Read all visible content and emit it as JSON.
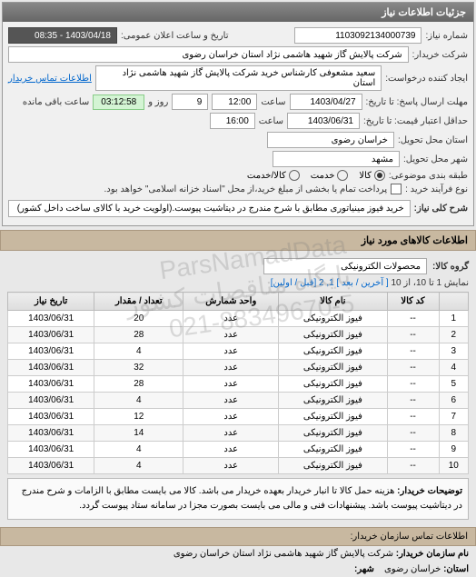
{
  "panel_title": "جزئیات اطلاعات نیاز",
  "header": {
    "need_number_label": "شماره نیاز:",
    "need_number": "1103092134000739",
    "announce_label": "تاریخ و ساعت اعلان عمومی:",
    "announce_value": "1403/04/18 - 08:35",
    "buyer_label": "شرکت خریدار:",
    "buyer_value": "شرکت پالایش گاز شهید هاشمی نژاد   استان خراسان رضوی",
    "requester_label": "ایجاد کننده درخواست:",
    "requester_value": "سعید مشعوفی کارشناس خرید شرکت پالایش گاز شهید هاشمی نژاد   استان",
    "contact_link": "اطلاعات تماس خریدار",
    "deadline_label": "مهلت ارسال پاسخ: تا تاریخ:",
    "deadline_date": "1403/04/27",
    "time_label": "ساعت",
    "deadline_time": "12:00",
    "days_remaining": "9",
    "days_label": "روز و",
    "countdown": "03:12:58",
    "remaining_label": "ساعت باقی مانده",
    "validity_label": "حداقل اعتبار قیمت: تا تاریخ:",
    "validity_date": "1403/06/31",
    "validity_time": "16:00",
    "delivery_state_label": "استان محل تحویل:",
    "delivery_state": "خراسان رضوی",
    "delivery_city_label": "شهر محل تحویل:",
    "delivery_city": "مشهد",
    "packing_label": "طبقه بندی موضوعی:",
    "radio_goods": "کالا",
    "radio_service": "خدمت",
    "radio_both": "کالا/خدمت",
    "process_label": "نوع فرآیند خرید :",
    "checkbox_label": "پرداخت تمام یا بخشی از مبلغ خرید،از محل \"اسناد خزانه اسلامی\" خواهد بود."
  },
  "need_title": {
    "label": "شرح کلی نیاز:",
    "value": "خرید فیوز مینیاتوری مطابق با شرح مندرج در دیتاشیت پیوست.(اولویت خرید با کالای ساخت داخل کشور)"
  },
  "goods_section": {
    "title": "اطلاعات کالاهای مورد نیاز",
    "group_label": "گروه کالا:",
    "group_value": "محصولات الکترونیکی",
    "pager_text": "نمایش 1 تا 10، از 10",
    "pager_prev": "[ آخرین / بعد ]",
    "pager_pages": "1, 2",
    "pager_next": "[قبل / اولین]"
  },
  "table": {
    "columns": [
      "",
      "کد کالا",
      "نام کالا",
      "واحد شمارش",
      "تعداد / مقدار",
      "تاریخ نیاز"
    ],
    "rows": [
      [
        "1",
        "--",
        "فیوز الکترونیکی",
        "عدد",
        "20",
        "1403/06/31"
      ],
      [
        "2",
        "--",
        "فیوز الکترونیکی",
        "عدد",
        "28",
        "1403/06/31"
      ],
      [
        "3",
        "--",
        "فیوز الکترونیکی",
        "عدد",
        "4",
        "1403/06/31"
      ],
      [
        "4",
        "--",
        "فیوز الکترونیکی",
        "عدد",
        "32",
        "1403/06/31"
      ],
      [
        "5",
        "--",
        "فیوز الکترونیکی",
        "عدد",
        "28",
        "1403/06/31"
      ],
      [
        "6",
        "--",
        "فیوز الکترونیکی",
        "عدد",
        "4",
        "1403/06/31"
      ],
      [
        "7",
        "--",
        "فیوز الکترونیکی",
        "عدد",
        "12",
        "1403/06/31"
      ],
      [
        "8",
        "--",
        "فیوز الکترونیکی",
        "عدد",
        "14",
        "1403/06/31"
      ],
      [
        "9",
        "--",
        "فیوز الکترونیکی",
        "عدد",
        "4",
        "1403/06/31"
      ],
      [
        "10",
        "--",
        "فیوز الکترونیکی",
        "عدد",
        "4",
        "1403/06/31"
      ]
    ]
  },
  "notes": {
    "label": "توضیحات خریدار:",
    "text": "هزینه حمل کالا تا انبار خریدار بعهده خریدار می باشد. کالا می بایست مطابق با الزامات و شرح مندرج در دیتاشیت پیوست باشد. پیشنهادات فنی و مالی می بایست بصورت مجزا در سامانه ستاد پیوست گردد."
  },
  "footer": {
    "title": "اطلاعات تماس سازمان خریدار:",
    "org_label": "نام سازمان خریدار:",
    "org_value": "شرکت پالایش گاز شهید هاشمی نژاد استان خراسان رضوی",
    "state_label": "استان:",
    "state_value": "خراسان رضوی",
    "city_label": "شهر:"
  },
  "watermark": {
    "line1": "ParsNamadData",
    "line2": "پایگاه مناقصات کشور",
    "line3": "021-88349670-5"
  }
}
